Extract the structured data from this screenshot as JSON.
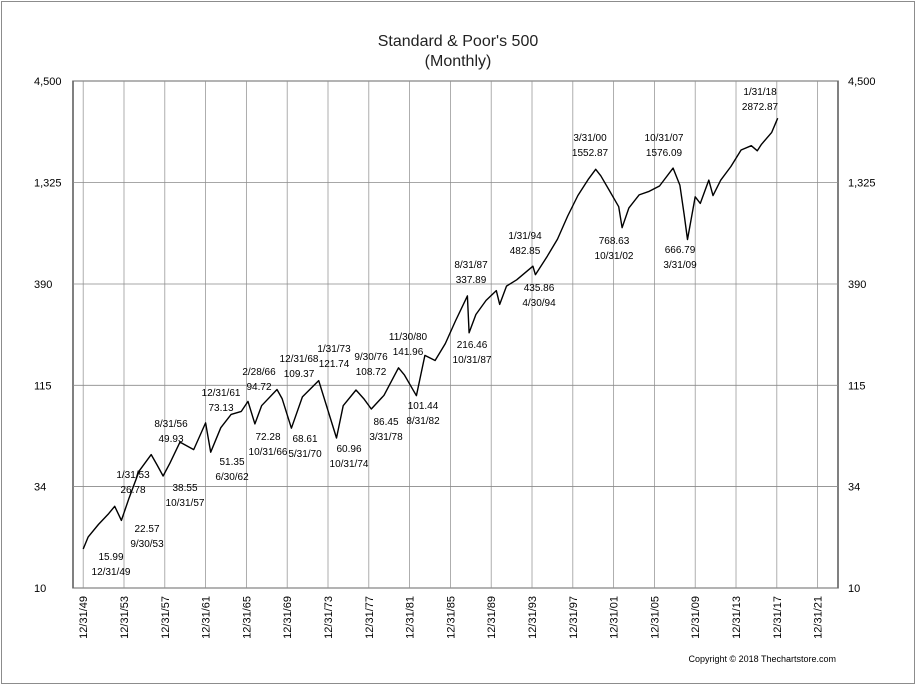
{
  "chart_data": {
    "type": "line",
    "title": "Standard & Poor's 500",
    "subtitle": "(Monthly)",
    "xlabel": "",
    "ylabel": "",
    "yscale": "log",
    "ylim": [
      10,
      4500
    ],
    "y_ticks": [
      {
        "value": 10,
        "label": "10"
      },
      {
        "value": 34,
        "label": "34"
      },
      {
        "value": 115,
        "label": "115"
      },
      {
        "value": 390,
        "label": "390"
      },
      {
        "value": 1325,
        "label": "1,325"
      },
      {
        "value": 4500,
        "label": "4,500"
      }
    ],
    "x_ticks": [
      "12/31/49",
      "12/31/53",
      "12/31/57",
      "12/31/61",
      "12/31/65",
      "12/31/69",
      "12/31/73",
      "12/31/77",
      "12/31/81",
      "12/31/85",
      "12/31/89",
      "12/31/93",
      "12/31/97",
      "12/31/01",
      "12/31/05",
      "12/31/09",
      "12/31/13",
      "12/31/17",
      "12/31/21"
    ],
    "xlim": [
      "1948-12-31",
      "2023-12-31"
    ],
    "grid": true,
    "series": [
      {
        "color": "#000000",
        "points": [
          [
            "1949-12-31",
            15.99
          ],
          [
            "1950-06-30",
            18.5
          ],
          [
            "1951-06-30",
            21.5
          ],
          [
            "1952-06-30",
            24.5
          ],
          [
            "1953-01-31",
            26.78
          ],
          [
            "1953-09-30",
            22.57
          ],
          [
            "1954-06-30",
            29.5
          ],
          [
            "1955-06-30",
            41
          ],
          [
            "1956-08-31",
            49.93
          ],
          [
            "1957-03-31",
            44
          ],
          [
            "1957-10-31",
            38.55
          ],
          [
            "1958-06-30",
            45
          ],
          [
            "1959-06-30",
            58
          ],
          [
            "1960-10-31",
            53
          ],
          [
            "1961-12-31",
            73.13
          ],
          [
            "1962-06-30",
            51.35
          ],
          [
            "1963-06-30",
            69
          ],
          [
            "1964-06-30",
            81
          ],
          [
            "1965-06-30",
            84
          ],
          [
            "1966-02-28",
            94.72
          ],
          [
            "1966-10-31",
            72.28
          ],
          [
            "1967-06-30",
            90
          ],
          [
            "1968-12-31",
            109.37
          ],
          [
            "1969-06-30",
            98
          ],
          [
            "1970-05-31",
            68.61
          ],
          [
            "1971-06-30",
            100
          ],
          [
            "1973-01-31",
            121.74
          ],
          [
            "1974-10-31",
            60.96
          ],
          [
            "1975-06-30",
            90
          ],
          [
            "1976-09-30",
            108.72
          ],
          [
            "1977-06-30",
            98
          ],
          [
            "1978-03-31",
            86.45
          ],
          [
            "1979-06-30",
            102
          ],
          [
            "1980-11-30",
            141.96
          ],
          [
            "1981-06-30",
            130
          ],
          [
            "1982-08-31",
            101.44
          ],
          [
            "1983-06-30",
            165
          ],
          [
            "1984-06-30",
            155
          ],
          [
            "1985-06-30",
            190
          ],
          [
            "1986-06-30",
            250
          ],
          [
            "1987-08-31",
            337.89
          ],
          [
            "1987-10-31",
            216.46
          ],
          [
            "1988-06-30",
            270
          ],
          [
            "1989-06-30",
            320
          ],
          [
            "1990-06-30",
            360
          ],
          [
            "1990-10-31",
            305
          ],
          [
            "1991-06-30",
            380
          ],
          [
            "1992-06-30",
            410
          ],
          [
            "1994-01-31",
            482.85
          ],
          [
            "1994-04-30",
            435.86
          ],
          [
            "1995-06-30",
            545
          ],
          [
            "1996-06-30",
            670
          ],
          [
            "1997-06-30",
            885
          ],
          [
            "1998-06-30",
            1133
          ],
          [
            "1999-06-30",
            1372
          ],
          [
            "2000-03-31",
            1552.87
          ],
          [
            "2000-09-30",
            1436
          ],
          [
            "2001-06-30",
            1224
          ],
          [
            "2002-06-30",
            990
          ],
          [
            "2002-10-31",
            768.63
          ],
          [
            "2003-06-30",
            975
          ],
          [
            "2004-06-30",
            1140
          ],
          [
            "2005-06-30",
            1191
          ],
          [
            "2006-06-30",
            1270
          ],
          [
            "2007-10-31",
            1576.09
          ],
          [
            "2008-06-30",
            1280
          ],
          [
            "2008-11-30",
            896
          ],
          [
            "2009-03-31",
            666.79
          ],
          [
            "2009-12-31",
            1115
          ],
          [
            "2010-06-30",
            1030
          ],
          [
            "2011-04-30",
            1363
          ],
          [
            "2011-09-30",
            1131
          ],
          [
            "2012-06-30",
            1362
          ],
          [
            "2013-06-30",
            1606
          ],
          [
            "2014-06-30",
            1960
          ],
          [
            "2015-06-30",
            2063
          ],
          [
            "2016-01-31",
            1940
          ],
          [
            "2016-06-30",
            2099
          ],
          [
            "2017-06-30",
            2423
          ],
          [
            "2018-01-31",
            2872.87
          ]
        ]
      }
    ],
    "annotations": [
      {
        "lines": [
          "1/31/18",
          "2872.87"
        ]
      },
      {
        "lines": [
          "3/31/00",
          "1552.87"
        ]
      },
      {
        "lines": [
          "10/31/07",
          "1576.09"
        ]
      },
      {
        "lines": [
          "768.63",
          "10/31/02"
        ]
      },
      {
        "lines": [
          "666.79",
          "3/31/09"
        ]
      },
      {
        "lines": [
          "1/31/94",
          "482.85"
        ]
      },
      {
        "lines": [
          "435.86",
          "4/30/94"
        ]
      },
      {
        "lines": [
          "8/31/87",
          "337.89"
        ]
      },
      {
        "lines": [
          "216.46",
          "10/31/87"
        ]
      },
      {
        "lines": [
          "11/30/80",
          "141.96"
        ]
      },
      {
        "lines": [
          "101.44",
          "8/31/82"
        ]
      },
      {
        "lines": [
          "1/31/73",
          "121.74"
        ]
      },
      {
        "lines": [
          "9/30/76",
          "108.72"
        ]
      },
      {
        "lines": [
          "86.45",
          "3/31/78"
        ]
      },
      {
        "lines": [
          "60.96",
          "10/31/74"
        ]
      },
      {
        "lines": [
          "12/31/68",
          "109.37"
        ]
      },
      {
        "lines": [
          "68.61",
          "5/31/70"
        ]
      },
      {
        "lines": [
          "2/28/66",
          "94.72"
        ]
      },
      {
        "lines": [
          "72.28",
          "10/31/66"
        ]
      },
      {
        "lines": [
          "12/31/61",
          "73.13"
        ]
      },
      {
        "lines": [
          "51.35",
          "6/30/62"
        ]
      },
      {
        "lines": [
          "8/31/56",
          "49.93"
        ]
      },
      {
        "lines": [
          "38.55",
          "10/31/57"
        ]
      },
      {
        "lines": [
          "1/31/53",
          "26.78"
        ]
      },
      {
        "lines": [
          "22.57",
          "9/30/53"
        ]
      },
      {
        "lines": [
          "15.99",
          "12/31/49"
        ]
      }
    ],
    "copyright": "Copyright © 2018 Thechartstore.com"
  }
}
